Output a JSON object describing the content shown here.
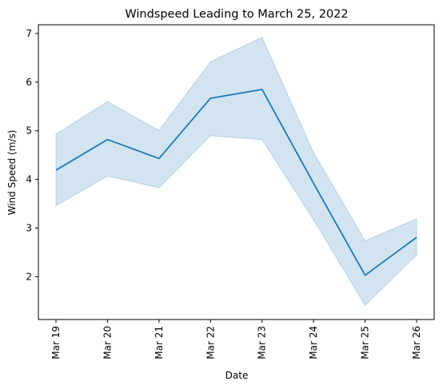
{
  "chart_data": {
    "type": "line",
    "title": "Windspeed Leading to March 25, 2022",
    "xlabel": "Date",
    "ylabel": "Wind Speed (m/s)",
    "categories": [
      "Mar 19",
      "Mar 20",
      "Mar 21",
      "Mar 22",
      "Mar 23",
      "Mar 24",
      "Mar 25",
      "Mar 26"
    ],
    "series": [
      {
        "values": [
          4.19,
          4.82,
          4.43,
          5.67,
          5.85,
          3.92,
          2.03,
          2.81
        ],
        "ci_lower": [
          3.46,
          4.07,
          3.83,
          4.9,
          4.82,
          3.17,
          1.41,
          2.45
        ],
        "ci_upper": [
          4.93,
          5.6,
          5.01,
          6.42,
          6.92,
          4.55,
          2.74,
          3.19
        ],
        "color": "#1f77b4"
      }
    ],
    "ylim": [
      1.12,
      7.18
    ],
    "yticks": [
      2,
      3,
      4,
      5,
      6,
      7
    ],
    "grid": false,
    "band_color": "#1f77b4",
    "band_opacity": 0.2
  }
}
